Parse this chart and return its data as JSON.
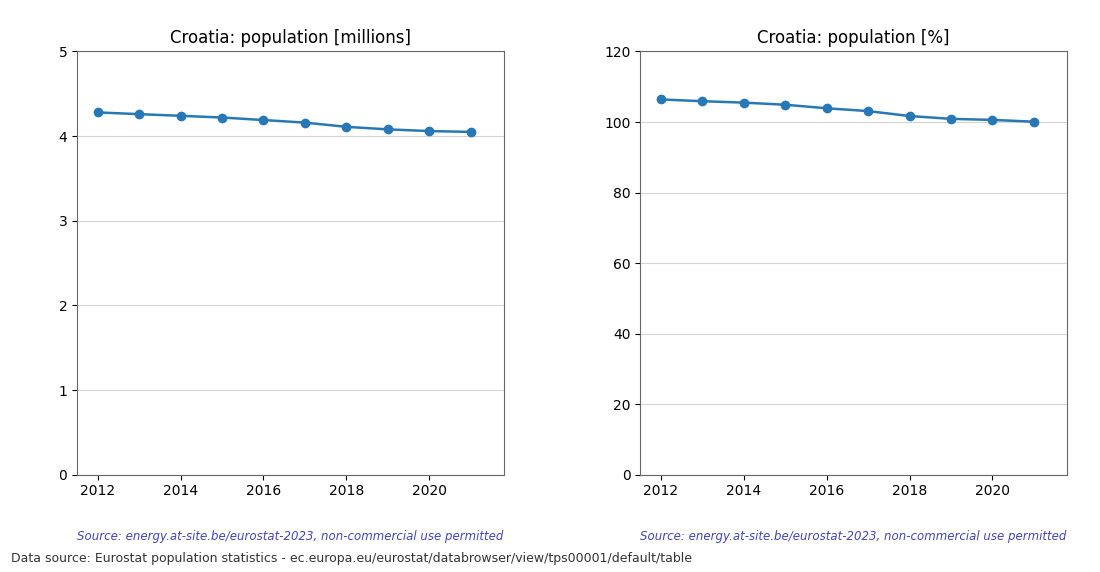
{
  "years": [
    2012,
    2013,
    2014,
    2015,
    2016,
    2017,
    2018,
    2019,
    2020,
    2021
  ],
  "population_millions": [
    4.28,
    4.26,
    4.24,
    4.22,
    4.19,
    4.16,
    4.11,
    4.08,
    4.06,
    4.05
  ],
  "population_pct": [
    106.4,
    105.9,
    105.5,
    104.9,
    103.9,
    103.1,
    101.7,
    100.9,
    100.6,
    100.1
  ],
  "title1": "Croatia: population [millions]",
  "title2": "Croatia: population [%]",
  "ylim1": [
    0,
    5
  ],
  "ylim2": [
    0,
    120
  ],
  "yticks1": [
    0,
    1,
    2,
    3,
    4,
    5
  ],
  "yticks2": [
    0,
    20,
    40,
    60,
    80,
    100,
    120
  ],
  "xticks": [
    2012,
    2014,
    2016,
    2018,
    2020
  ],
  "line_color": "#2878b5",
  "marker": "o",
  "marker_size": 6,
  "source_text": "Source: energy.at-site.be/eurostat-2023, non-commercial use permitted",
  "source_color": "#4444bb",
  "footer_text": "Data source: Eurostat population statistics - ec.europa.eu/eurostat/databrowser/view/tps00001/default/table",
  "footer_color": "#333333",
  "bg_color": "#ffffff",
  "grid_color": "#aaaaaa",
  "grid_alpha": 0.5,
  "title_fontsize": 12,
  "source_fontsize": 8.5,
  "footer_fontsize": 9,
  "tick_fontsize": 10
}
